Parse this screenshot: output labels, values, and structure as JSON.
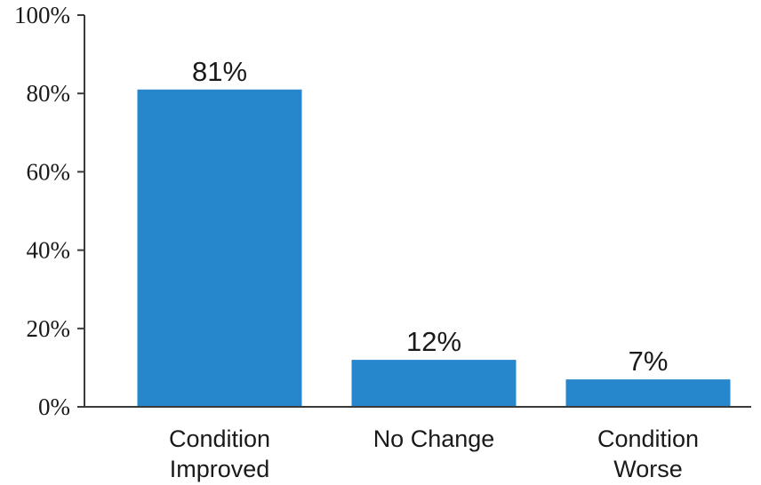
{
  "chart_data": {
    "type": "bar",
    "categories": [
      [
        "Condition",
        "Improved"
      ],
      [
        "No Change"
      ],
      [
        "Condition",
        "Worse"
      ]
    ],
    "values": [
      81,
      12,
      7
    ],
    "data_labels": [
      "81%",
      "12%",
      "7%"
    ],
    "ylim": [
      0,
      100
    ],
    "y_ticks": [
      0,
      20,
      40,
      60,
      80,
      100
    ],
    "y_tick_labels": [
      "0%",
      "20%",
      "40%",
      "60%",
      "80%",
      "100%"
    ],
    "bar_color": "#2787cc",
    "grid": false,
    "legend": "none"
  }
}
